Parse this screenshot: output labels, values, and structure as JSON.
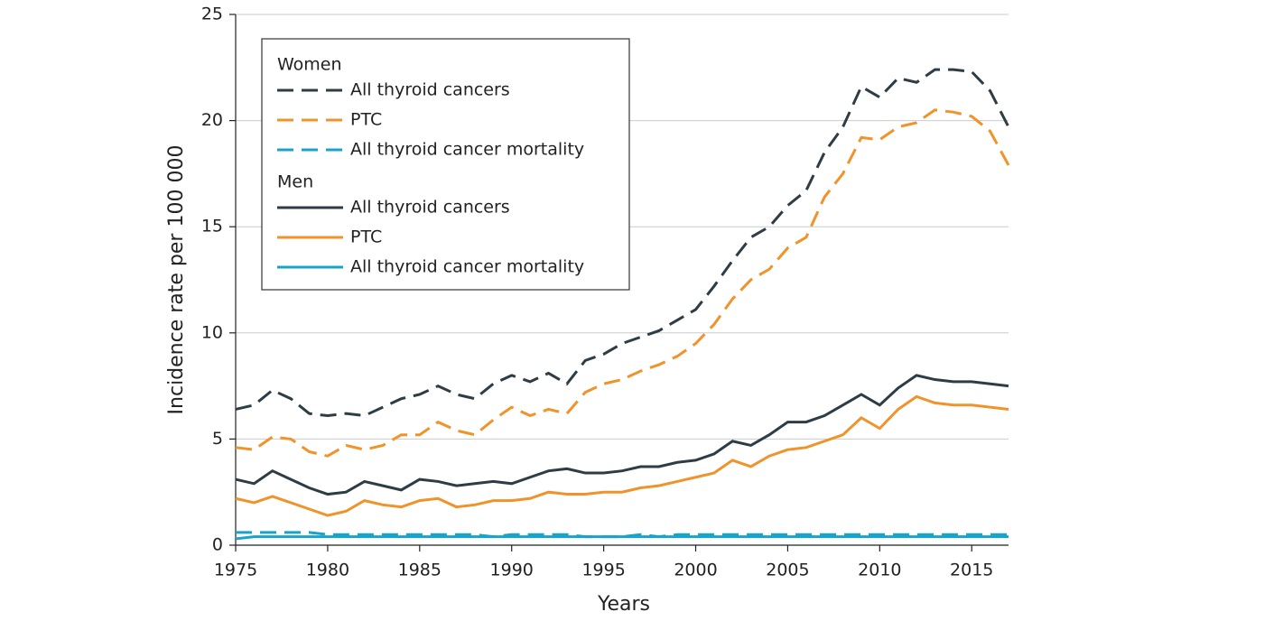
{
  "chart_data": {
    "type": "line",
    "xlabel": "Years",
    "ylabel": "Incidence rate per 100 000",
    "x": [
      1975,
      1976,
      1977,
      1978,
      1979,
      1980,
      1981,
      1982,
      1983,
      1984,
      1985,
      1986,
      1987,
      1988,
      1989,
      1990,
      1991,
      1992,
      1993,
      1994,
      1995,
      1996,
      1997,
      1998,
      1999,
      2000,
      2001,
      2002,
      2003,
      2004,
      2005,
      2006,
      2007,
      2008,
      2009,
      2010,
      2011,
      2012,
      2013,
      2014,
      2015,
      2016,
      2017
    ],
    "xlim": [
      1975,
      2017
    ],
    "xticks": [
      1975,
      1980,
      1985,
      1990,
      1995,
      2000,
      2005,
      2010,
      2015
    ],
    "ylim": [
      0,
      25
    ],
    "yticks": [
      0,
      5,
      10,
      15,
      20,
      25
    ],
    "grid": true,
    "series": [
      {
        "group": "Women",
        "name": "All thyroid cancers",
        "color": "#2e3d45",
        "dashed": true,
        "values": [
          6.4,
          6.6,
          7.3,
          6.9,
          6.2,
          6.1,
          6.2,
          6.1,
          6.5,
          6.9,
          7.1,
          7.5,
          7.1,
          6.9,
          7.6,
          8.0,
          7.7,
          8.1,
          7.6,
          8.7,
          9.0,
          9.5,
          9.8,
          10.1,
          10.6,
          11.1,
          12.2,
          13.4,
          14.5,
          15.0,
          16.0,
          16.7,
          18.5,
          19.7,
          21.6,
          21.1,
          22.0,
          21.8,
          22.4,
          22.4,
          22.3,
          21.4,
          19.7
        ]
      },
      {
        "group": "Women",
        "name": "PTC",
        "color": "#f0932b",
        "dashed": true,
        "values": [
          4.6,
          4.5,
          5.1,
          5.0,
          4.4,
          4.2,
          4.7,
          4.5,
          4.7,
          5.2,
          5.2,
          5.8,
          5.4,
          5.2,
          5.9,
          6.5,
          6.1,
          6.4,
          6.2,
          7.2,
          7.6,
          7.8,
          8.2,
          8.5,
          8.9,
          9.5,
          10.4,
          11.6,
          12.5,
          13.0,
          14.0,
          14.5,
          16.4,
          17.5,
          19.2,
          19.1,
          19.7,
          19.9,
          20.5,
          20.4,
          20.2,
          19.5,
          17.9
        ]
      },
      {
        "group": "Women",
        "name": "All thyroid cancer mortality",
        "color": "#1aa3c8",
        "dashed": true,
        "values": [
          0.6,
          0.6,
          0.6,
          0.6,
          0.6,
          0.5,
          0.5,
          0.5,
          0.5,
          0.5,
          0.5,
          0.5,
          0.5,
          0.5,
          0.4,
          0.5,
          0.5,
          0.5,
          0.5,
          0.4,
          0.4,
          0.4,
          0.5,
          0.4,
          0.5,
          0.5,
          0.5,
          0.5,
          0.5,
          0.5,
          0.5,
          0.5,
          0.5,
          0.5,
          0.5,
          0.5,
          0.5,
          0.5,
          0.5,
          0.5,
          0.5,
          0.5,
          0.5
        ]
      },
      {
        "group": "Men",
        "name": "All thyroid cancers",
        "color": "#2e3d45",
        "dashed": false,
        "values": [
          3.1,
          2.9,
          3.5,
          3.1,
          2.7,
          2.4,
          2.5,
          3.0,
          2.8,
          2.6,
          3.1,
          3.0,
          2.8,
          2.9,
          3.0,
          2.9,
          3.2,
          3.5,
          3.6,
          3.4,
          3.4,
          3.5,
          3.7,
          3.7,
          3.9,
          4.0,
          4.3,
          4.9,
          4.7,
          5.2,
          5.8,
          5.8,
          6.1,
          6.6,
          7.1,
          6.6,
          7.4,
          8.0,
          7.8,
          7.7,
          7.7,
          7.6,
          7.5
        ]
      },
      {
        "group": "Men",
        "name": "PTC",
        "color": "#f0932b",
        "dashed": false,
        "values": [
          2.2,
          2.0,
          2.3,
          2.0,
          1.7,
          1.4,
          1.6,
          2.1,
          1.9,
          1.8,
          2.1,
          2.2,
          1.8,
          1.9,
          2.1,
          2.1,
          2.2,
          2.5,
          2.4,
          2.4,
          2.5,
          2.5,
          2.7,
          2.8,
          3.0,
          3.2,
          3.4,
          4.0,
          3.7,
          4.2,
          4.5,
          4.6,
          4.9,
          5.2,
          6.0,
          5.5,
          6.4,
          7.0,
          6.7,
          6.6,
          6.6,
          6.5,
          6.4
        ]
      },
      {
        "group": "Men",
        "name": "All thyroid cancer mortality",
        "color": "#1aa3c8",
        "dashed": false,
        "values": [
          0.3,
          0.4,
          0.4,
          0.4,
          0.4,
          0.4,
          0.4,
          0.4,
          0.4,
          0.4,
          0.4,
          0.4,
          0.4,
          0.4,
          0.4,
          0.4,
          0.4,
          0.4,
          0.4,
          0.4,
          0.4,
          0.4,
          0.4,
          0.4,
          0.4,
          0.4,
          0.4,
          0.4,
          0.4,
          0.4,
          0.4,
          0.4,
          0.4,
          0.4,
          0.4,
          0.4,
          0.4,
          0.4,
          0.4,
          0.4,
          0.4,
          0.4,
          0.4
        ]
      }
    ]
  }
}
